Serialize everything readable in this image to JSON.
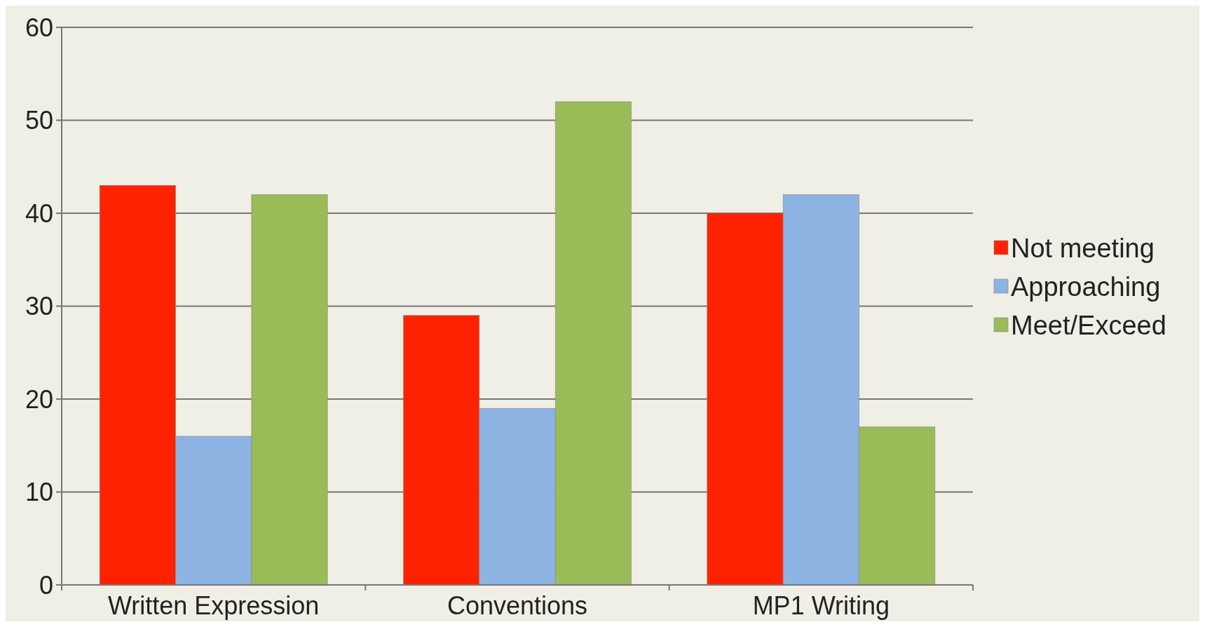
{
  "chart_data": {
    "type": "bar",
    "categories": [
      "Written Expression",
      "Conventions",
      "MP1 Writing"
    ],
    "series": [
      {
        "name": "Not meeting",
        "color": "#ff2200",
        "values": [
          43,
          29,
          40
        ]
      },
      {
        "name": "Approaching",
        "color": "#8db3e2",
        "values": [
          16,
          19,
          42
        ]
      },
      {
        "name": "Meet/Exceed",
        "color": "#9bbb59",
        "values": [
          42,
          52,
          17
        ]
      }
    ],
    "ylim": [
      0,
      60
    ],
    "yticks": [
      0,
      10,
      20,
      30,
      40,
      50,
      60
    ],
    "grid": "y",
    "legend": "right"
  }
}
